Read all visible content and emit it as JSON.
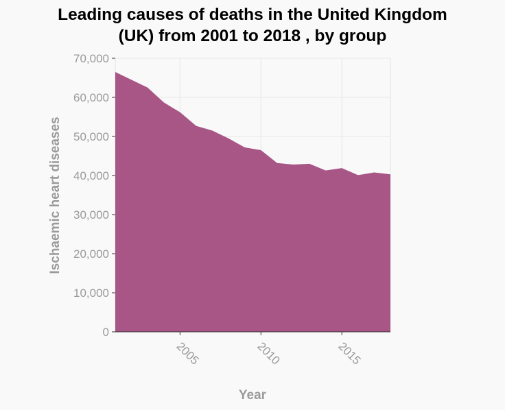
{
  "chart_data": {
    "type": "area",
    "title_line1": "Leading causes of deaths in the United Kingdom",
    "title_line2": "(UK) from 2001 to 2018 , by group",
    "xlabel": "Year",
    "ylabel": "Ischaemic heart diseases",
    "x": [
      2001,
      2002,
      2003,
      2004,
      2005,
      2006,
      2007,
      2008,
      2009,
      2010,
      2011,
      2012,
      2013,
      2014,
      2015,
      2016,
      2017,
      2018
    ],
    "series": [
      {
        "values": [
          66500,
          64500,
          62500,
          58700,
          56200,
          52700,
          51500,
          49500,
          47200,
          46500,
          43200,
          42800,
          43000,
          41300,
          41900,
          40100,
          40800,
          40300
        ]
      }
    ],
    "xlim": [
      2001,
      2018
    ],
    "ylim": [
      0,
      70000
    ],
    "x_ticks": [
      "2005",
      "2010",
      "2015"
    ],
    "y_ticks": [
      "0",
      "10,000",
      "20,000",
      "30,000",
      "40,000",
      "50,000",
      "60,000",
      "70,000"
    ],
    "grid": true,
    "fill_color": "#a85686"
  }
}
